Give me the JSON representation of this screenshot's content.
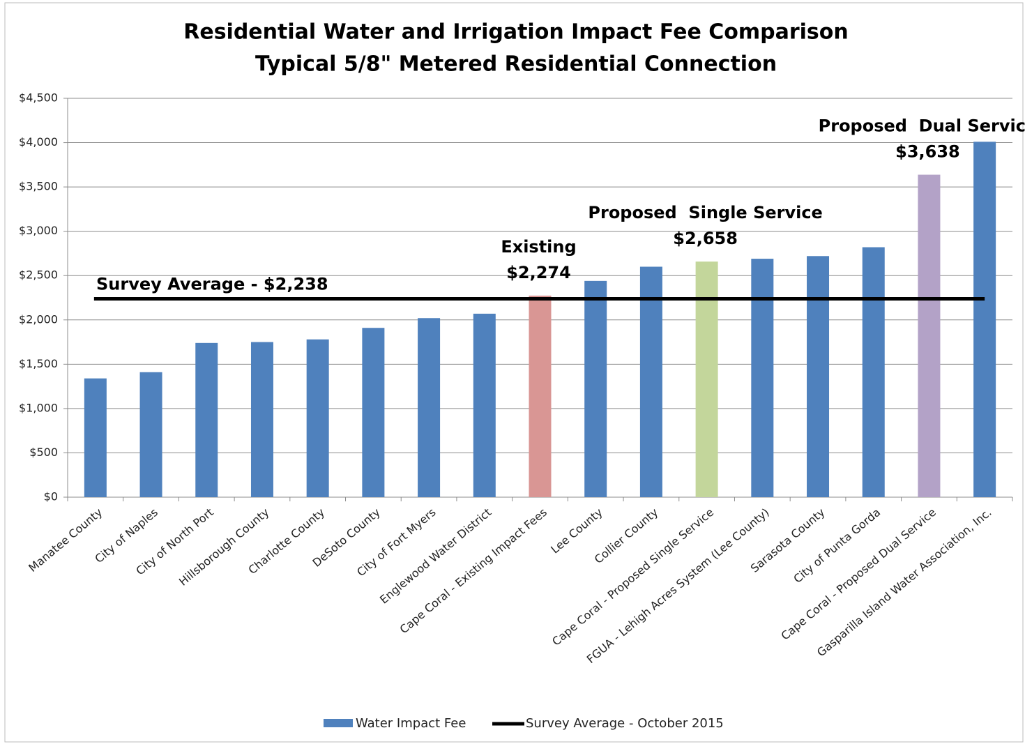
{
  "chart_data": {
    "type": "bar",
    "title": "Residential Water and Irrigation Impact Fee Comparison",
    "subtitle": "Typical 5/8\" Metered Residential Connection",
    "categories": [
      "Manatee County",
      "City of Naples",
      "City of North Port",
      "Hillsborough County",
      "Charlotte County",
      "DeSoto County",
      "City of Fort Myers",
      "Englewood Water District",
      "Cape Coral - Existing Impact Fees",
      "Lee County",
      "Collier County",
      "Cape Coral - Proposed Single Service",
      "FGUA - Lehigh Acres System (Lee County)",
      "Sarasota County",
      "City of Punta Gorda",
      "Cape Coral - Proposed Dual Service",
      "Gasparilla Island Water Association, Inc."
    ],
    "series": [
      {
        "name": "Water Impact Fee",
        "color": "#4f81bd",
        "colors": [
          "#4f81bd",
          "#4f81bd",
          "#4f81bd",
          "#4f81bd",
          "#4f81bd",
          "#4f81bd",
          "#4f81bd",
          "#4f81bd",
          "#d99694",
          "#4f81bd",
          "#4f81bd",
          "#c3d69b",
          "#4f81bd",
          "#4f81bd",
          "#4f81bd",
          "#b3a2c7",
          "#4f81bd"
        ],
        "values": [
          1340,
          1410,
          1740,
          1750,
          1780,
          1910,
          2020,
          2070,
          2274,
          2440,
          2600,
          2658,
          2690,
          2720,
          2820,
          3638,
          4010
        ],
        "value_labels": [
          null,
          null,
          null,
          null,
          null,
          null,
          null,
          null,
          "$2,274",
          null,
          null,
          "$2,658",
          null,
          null,
          null,
          "$3,638",
          null
        ]
      }
    ],
    "annotations": [
      {
        "text": "Existing",
        "category": "Cape Coral - Existing Impact Fees"
      },
      {
        "text": "Proposed  Single Service",
        "category": "Cape Coral - Proposed Single Service"
      },
      {
        "text": "Proposed  Dual Service",
        "category": "Cape Coral - Proposed Dual Service"
      }
    ],
    "reference_line": {
      "name": "Survey Average - October 2015",
      "label": "Survey Average - $2,238",
      "value": 2238,
      "color": "#000000"
    },
    "ylim": [
      0,
      4500
    ],
    "yticks": [
      {
        "value": 0,
        "label": "$0"
      },
      {
        "value": 500,
        "label": "$500"
      },
      {
        "value": 1000,
        "label": "$1,000"
      },
      {
        "value": 1500,
        "label": "$1,500"
      },
      {
        "value": 2000,
        "label": "$2,000"
      },
      {
        "value": 2500,
        "label": "$2,500"
      },
      {
        "value": 3000,
        "label": "$3,000"
      },
      {
        "value": 3500,
        "label": "$3,500"
      },
      {
        "value": 4000,
        "label": "$4,000"
      },
      {
        "value": 4500,
        "label": "$4,500"
      }
    ],
    "grid": true
  }
}
